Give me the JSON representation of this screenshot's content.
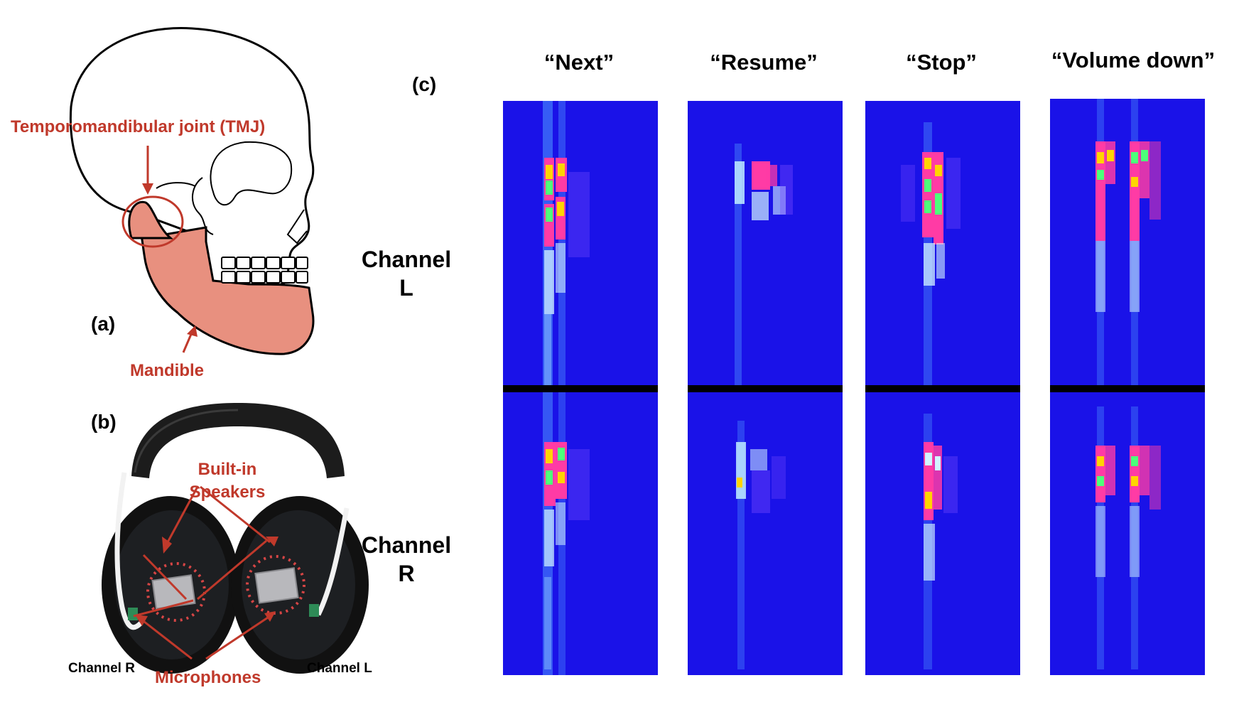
{
  "panel_a": {
    "letter": "(a)",
    "tmj_label": "Temporomandibular joint (TMJ)",
    "mandible_label": "Mandible",
    "colors": {
      "annotation": "#c0392b",
      "mandible_fill": "#e8907f"
    }
  },
  "panel_b": {
    "letter": "(b)",
    "speakers_label_line1": "Built-in",
    "speakers_label_line2": "Speakers",
    "microphones_label": "Microphones",
    "channel_r_label": "Channel R",
    "channel_l_label": "Channel L"
  },
  "panel_c": {
    "letter": "(c)",
    "channel_l_line1": "Channel",
    "channel_l_line2": "L",
    "channel_r_line1": "Channel",
    "channel_r_line2": "R",
    "commands": [
      "“Next”",
      "“Resume”",
      "“Stop”",
      "“Volume down”"
    ],
    "colors": {
      "background": "#1a12e8",
      "divider": "#000000"
    }
  }
}
